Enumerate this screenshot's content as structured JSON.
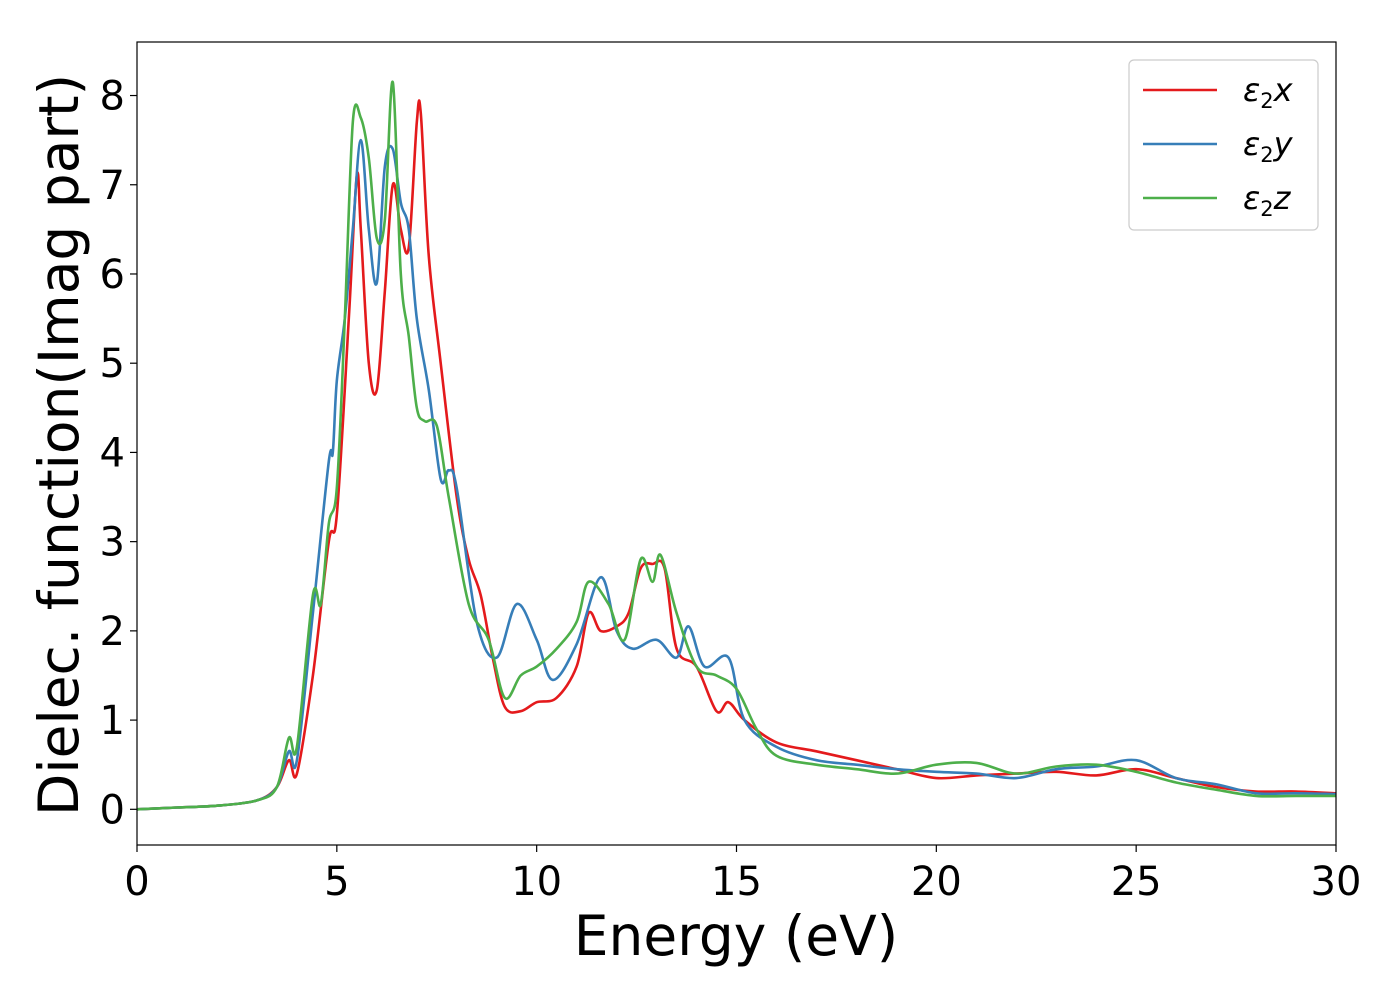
{
  "chart_data": {
    "type": "line",
    "xlabel": "Energy (eV)",
    "ylabel": "Dielec. function(Imag part)",
    "xlim": [
      0,
      30
    ],
    "ylim": [
      -0.4,
      8.6
    ],
    "xticks": [
      "0",
      "5",
      "10",
      "15",
      "20",
      "25",
      "30"
    ],
    "yticks": [
      "0",
      "1",
      "2",
      "3",
      "4",
      "5",
      "6",
      "7",
      "8"
    ],
    "grid": false,
    "legend_position": "top-right",
    "series": [
      {
        "name": "ε2x",
        "legend": {
          "base": "ε",
          "sub": "2",
          "suffix": "x"
        },
        "color": "#e41a1c",
        "x": [
          0,
          1,
          2,
          3,
          3.5,
          3.8,
          4.0,
          4.4,
          4.8,
          5.0,
          5.3,
          5.5,
          5.6,
          5.8,
          6.0,
          6.2,
          6.4,
          6.6,
          6.8,
          7.0,
          7.1,
          7.3,
          7.6,
          8.0,
          8.3,
          8.6,
          8.9,
          9.2,
          9.6,
          10.0,
          10.5,
          11.0,
          11.3,
          11.6,
          12.0,
          12.3,
          12.6,
          12.9,
          13.2,
          13.5,
          14.0,
          14.5,
          14.8,
          15.2,
          16.0,
          17.0,
          18.0,
          19.0,
          20.0,
          21.0,
          22.0,
          23.0,
          24.0,
          25.0,
          26.0,
          27.0,
          28.0,
          29.0,
          30.0
        ],
        "values": [
          0.0,
          0.02,
          0.04,
          0.1,
          0.25,
          0.55,
          0.4,
          1.5,
          3.0,
          3.3,
          5.5,
          7.1,
          6.5,
          5.0,
          4.7,
          5.8,
          7.0,
          6.5,
          6.3,
          7.7,
          7.8,
          6.2,
          5.0,
          3.5,
          2.8,
          2.4,
          1.7,
          1.15,
          1.1,
          1.2,
          1.25,
          1.6,
          2.2,
          2.0,
          2.05,
          2.2,
          2.7,
          2.75,
          2.7,
          1.8,
          1.6,
          1.1,
          1.2,
          1.0,
          0.75,
          0.65,
          0.55,
          0.45,
          0.35,
          0.38,
          0.4,
          0.42,
          0.38,
          0.45,
          0.35,
          0.25,
          0.2,
          0.2,
          0.18
        ]
      },
      {
        "name": "ε2y",
        "legend": {
          "base": "ε",
          "sub": "2",
          "suffix": "y"
        },
        "color": "#377eb8",
        "x": [
          0,
          1,
          2,
          3,
          3.5,
          3.8,
          4.0,
          4.4,
          4.8,
          4.9,
          5.0,
          5.2,
          5.4,
          5.6,
          5.8,
          6.0,
          6.2,
          6.4,
          6.6,
          6.8,
          7.0,
          7.3,
          7.6,
          7.8,
          8.0,
          8.5,
          9.0,
          9.5,
          10.0,
          10.4,
          11.0,
          11.6,
          12.0,
          12.4,
          13.0,
          13.5,
          13.8,
          14.2,
          14.8,
          15.2,
          16.0,
          17.0,
          18.0,
          19.0,
          20.0,
          21.0,
          22.0,
          23.0,
          24.0,
          25.0,
          26.0,
          27.0,
          28.0,
          29.0,
          30.0
        ],
        "values": [
          0.0,
          0.02,
          0.04,
          0.1,
          0.25,
          0.65,
          0.55,
          2.2,
          3.9,
          4.0,
          4.8,
          5.5,
          6.5,
          7.5,
          6.5,
          5.9,
          7.2,
          7.4,
          6.8,
          6.5,
          5.5,
          4.7,
          3.7,
          3.8,
          3.6,
          2.1,
          1.7,
          2.3,
          1.9,
          1.45,
          1.85,
          2.6,
          2.0,
          1.8,
          1.9,
          1.7,
          2.05,
          1.6,
          1.7,
          1.0,
          0.7,
          0.55,
          0.5,
          0.45,
          0.42,
          0.4,
          0.35,
          0.45,
          0.48,
          0.55,
          0.35,
          0.28,
          0.18,
          0.18,
          0.17
        ]
      },
      {
        "name": "ε2z",
        "legend": {
          "base": "ε",
          "sub": "2",
          "suffix": "z"
        },
        "color": "#4daf4a",
        "x": [
          0,
          1,
          2,
          3,
          3.5,
          3.8,
          4.0,
          4.4,
          4.6,
          4.8,
          5.0,
          5.2,
          5.4,
          5.6,
          5.8,
          6.0,
          6.2,
          6.4,
          6.6,
          6.8,
          7.0,
          7.2,
          7.5,
          7.8,
          8.3,
          8.8,
          9.2,
          9.6,
          10.0,
          10.5,
          11.0,
          11.3,
          11.8,
          12.2,
          12.6,
          12.9,
          13.1,
          13.5,
          14.0,
          14.5,
          15.0,
          15.5,
          16.0,
          17.0,
          18.0,
          19.0,
          20.0,
          21.0,
          22.0,
          23.0,
          24.0,
          25.0,
          26.0,
          27.0,
          28.0,
          29.0,
          30.0
        ],
        "values": [
          0.0,
          0.02,
          0.04,
          0.1,
          0.25,
          0.8,
          0.7,
          2.4,
          2.3,
          3.2,
          3.6,
          5.5,
          7.7,
          7.75,
          7.3,
          6.4,
          6.6,
          8.15,
          6.0,
          5.3,
          4.5,
          4.35,
          4.3,
          3.5,
          2.3,
          1.9,
          1.25,
          1.5,
          1.6,
          1.8,
          2.1,
          2.55,
          2.3,
          1.9,
          2.8,
          2.55,
          2.85,
          2.2,
          1.6,
          1.5,
          1.35,
          0.9,
          0.6,
          0.5,
          0.45,
          0.4,
          0.5,
          0.52,
          0.4,
          0.48,
          0.5,
          0.42,
          0.3,
          0.22,
          0.15,
          0.15,
          0.15
        ]
      }
    ]
  }
}
